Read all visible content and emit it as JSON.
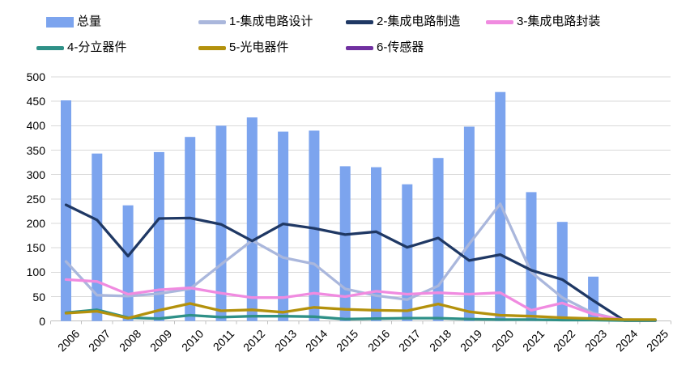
{
  "chart_data": {
    "type": "combo",
    "subtype": "bars-with-lines",
    "title": "",
    "xlabel": "",
    "ylabel": "",
    "ylim": [
      0,
      500
    ],
    "ytick_step": 50,
    "grid": true,
    "legend_position": "top",
    "y_tick_labels": [
      "0",
      "50",
      "100",
      "150",
      "200",
      "250",
      "300",
      "350",
      "400",
      "450",
      "500"
    ],
    "categories": [
      "2006",
      "2007",
      "2008",
      "2009",
      "2010",
      "2011",
      "2012",
      "2013",
      "2014",
      "2015",
      "2016",
      "2017",
      "2018",
      "2019",
      "2020",
      "2021",
      "2022",
      "2023",
      "2024",
      "2025"
    ],
    "bar_series": {
      "name": "总量",
      "color": "#7CA4EE",
      "values": [
        452,
        343,
        237,
        346,
        377,
        400,
        417,
        388,
        390,
        317,
        315,
        280,
        334,
        398,
        469,
        264,
        203,
        91,
        0,
        0
      ]
    },
    "line_series": [
      {
        "name": "1-集成电路设计",
        "color": "#AAB7DC",
        "hidden": false,
        "values": [
          122,
          53,
          51,
          56,
          66,
          116,
          165,
          130,
          117,
          66,
          52,
          44,
          72,
          158,
          240,
          100,
          48,
          16,
          1,
          1
        ]
      },
      {
        "name": "2-集成电路制造",
        "color": "#1F3864",
        "hidden": false,
        "values": [
          238,
          207,
          133,
          210,
          211,
          198,
          164,
          199,
          190,
          177,
          183,
          151,
          170,
          124,
          136,
          104,
          85,
          42,
          1,
          1
        ]
      },
      {
        "name": "3-集成电路封装",
        "color": "#F08BE0",
        "hidden": false,
        "values": [
          85,
          81,
          55,
          64,
          68,
          57,
          48,
          48,
          57,
          50,
          61,
          55,
          58,
          55,
          58,
          22,
          37,
          14,
          2,
          1
        ]
      },
      {
        "name": "4-分立器件",
        "color": "#2E9087",
        "hidden": false,
        "values": [
          17,
          23,
          7,
          5,
          12,
          8,
          10,
          10,
          9,
          4,
          5,
          6,
          6,
          4,
          3,
          3,
          2,
          2,
          1,
          1
        ]
      },
      {
        "name": "5-光电器件",
        "color": "#B3910C",
        "hidden": false,
        "values": [
          16,
          20,
          6,
          22,
          36,
          21,
          23,
          18,
          28,
          24,
          22,
          21,
          35,
          19,
          12,
          10,
          7,
          5,
          3,
          3
        ]
      },
      {
        "name": "6-传感器",
        "color": "#7030A0",
        "hidden": true,
        "values": [
          0,
          0,
          0,
          0,
          0,
          0,
          0,
          0,
          0,
          0,
          0,
          0,
          0,
          0,
          0,
          0,
          0,
          0,
          0,
          0
        ]
      }
    ],
    "colors": {
      "gridline": "#D9D9D9",
      "axis_line": "#C0C0C0",
      "text": "#000000",
      "background": "#FFFFFF"
    }
  }
}
